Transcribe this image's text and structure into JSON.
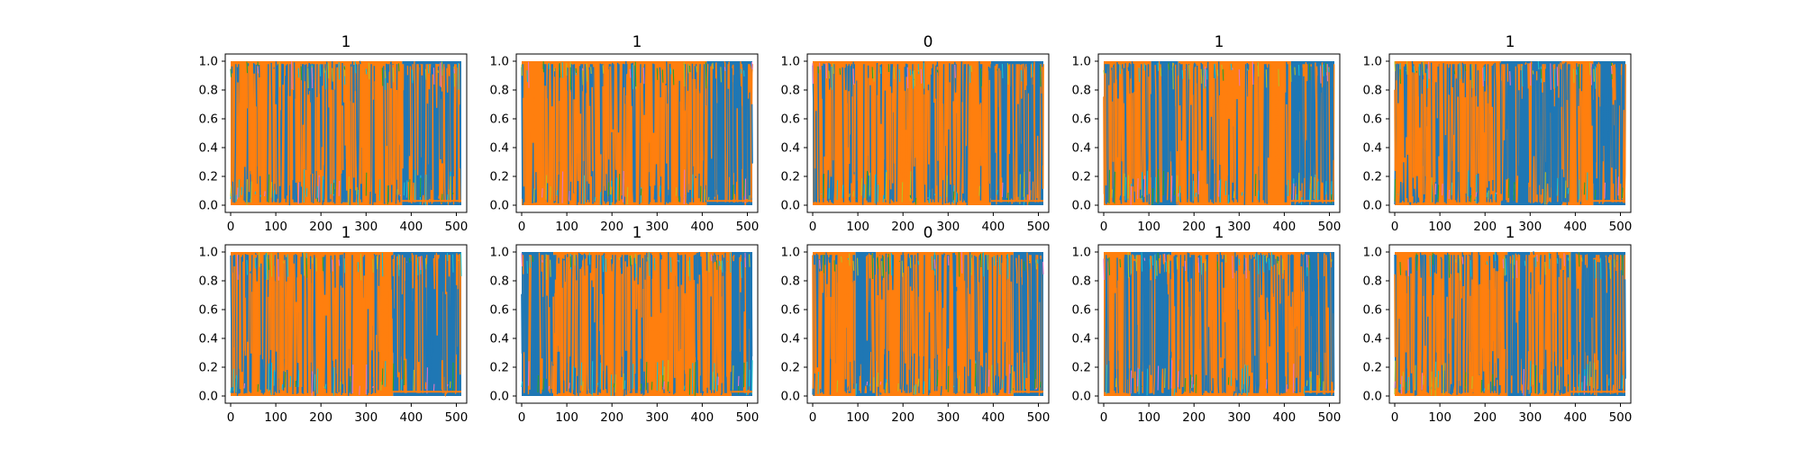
{
  "chart_data": {
    "type": "line",
    "grid": false,
    "legend": "none",
    "layout": "2x5 grid of subplots",
    "palette": [
      "#1f77b4",
      "#ff7f0e",
      "#17becf",
      "#bcbd22",
      "#2ca02c",
      "#e377c2"
    ],
    "panels": [
      {
        "title": "1",
        "xlim": [
          -12,
          523
        ],
        "ylim": [
          -0.05,
          1.05
        ],
        "xticks": [
          0,
          100,
          200,
          300,
          400,
          500
        ],
        "yticks": [
          0.0,
          0.2,
          0.4,
          0.6,
          0.8,
          1.0
        ],
        "segments": [
          {
            "from": 0,
            "to": 380,
            "dominant": "#ff7f0e"
          },
          {
            "from": 380,
            "to": 511,
            "dominant": "#1f77b4"
          }
        ]
      },
      {
        "title": "1",
        "xlim": [
          -12,
          523
        ],
        "ylim": [
          -0.05,
          1.05
        ],
        "xticks": [
          0,
          100,
          200,
          300,
          400,
          500
        ],
        "yticks": [
          0.0,
          0.2,
          0.4,
          0.6,
          0.8,
          1.0
        ],
        "segments": [
          {
            "from": 0,
            "to": 410,
            "dominant": "#ff7f0e"
          },
          {
            "from": 410,
            "to": 511,
            "dominant": "#1f77b4"
          }
        ]
      },
      {
        "title": "0",
        "xlim": [
          -12,
          523
        ],
        "ylim": [
          -0.05,
          1.05
        ],
        "xticks": [
          0,
          100,
          200,
          300,
          400,
          500
        ],
        "yticks": [
          0.0,
          0.2,
          0.4,
          0.6,
          0.8,
          1.0
        ],
        "segments": [
          {
            "from": 0,
            "to": 395,
            "dominant": "#ff7f0e"
          },
          {
            "from": 395,
            "to": 511,
            "dominant": "#1f77b4"
          }
        ]
      },
      {
        "title": "1",
        "xlim": [
          -12,
          523
        ],
        "ylim": [
          -0.05,
          1.05
        ],
        "xticks": [
          0,
          100,
          200,
          300,
          400,
          500
        ],
        "yticks": [
          0.0,
          0.2,
          0.4,
          0.6,
          0.8,
          1.0
        ],
        "segments": [
          {
            "from": 0,
            "to": 105,
            "dominant": "#ff7f0e"
          },
          {
            "from": 105,
            "to": 165,
            "dominant": "#1f77b4"
          },
          {
            "from": 165,
            "to": 415,
            "dominant": "#ff7f0e"
          },
          {
            "from": 415,
            "to": 511,
            "dominant": "#1f77b4"
          }
        ]
      },
      {
        "title": "1",
        "xlim": [
          -12,
          523
        ],
        "ylim": [
          -0.05,
          1.05
        ],
        "xticks": [
          0,
          100,
          200,
          300,
          400,
          500
        ],
        "yticks": [
          0.0,
          0.2,
          0.4,
          0.6,
          0.8,
          1.0
        ],
        "segments": [
          {
            "from": 0,
            "to": 235,
            "dominant": "#ff7f0e"
          },
          {
            "from": 235,
            "to": 370,
            "dominant": "#1f77b4"
          },
          {
            "from": 370,
            "to": 440,
            "dominant": "#ff7f0e"
          },
          {
            "from": 440,
            "to": 511,
            "dominant": "#1f77b4"
          }
        ]
      },
      {
        "title": "1",
        "xlim": [
          -12,
          523
        ],
        "ylim": [
          -0.05,
          1.05
        ],
        "xticks": [
          0,
          100,
          200,
          300,
          400,
          500
        ],
        "yticks": [
          0.0,
          0.2,
          0.4,
          0.6,
          0.8,
          1.0
        ],
        "segments": [
          {
            "from": 0,
            "to": 360,
            "dominant": "#ff7f0e"
          },
          {
            "from": 360,
            "to": 511,
            "dominant": "#1f77b4"
          }
        ]
      },
      {
        "title": "1",
        "xlim": [
          -12,
          523
        ],
        "ylim": [
          -0.05,
          1.05
        ],
        "xticks": [
          0,
          100,
          200,
          300,
          400,
          500
        ],
        "yticks": [
          0.0,
          0.2,
          0.4,
          0.6,
          0.8,
          1.0
        ],
        "segments": [
          {
            "from": 0,
            "to": 70,
            "dominant": "#1f77b4"
          },
          {
            "from": 70,
            "to": 465,
            "dominant": "#ff7f0e"
          },
          {
            "from": 465,
            "to": 511,
            "dominant": "#1f77b4"
          }
        ]
      },
      {
        "title": "0",
        "xlim": [
          -12,
          523
        ],
        "ylim": [
          -0.05,
          1.05
        ],
        "xticks": [
          0,
          100,
          200,
          300,
          400,
          500
        ],
        "yticks": [
          0.0,
          0.2,
          0.4,
          0.6,
          0.8,
          1.0
        ],
        "segments": [
          {
            "from": 0,
            "to": 95,
            "dominant": "#ff7f0e"
          },
          {
            "from": 95,
            "to": 140,
            "dominant": "#1f77b4"
          },
          {
            "from": 140,
            "to": 445,
            "dominant": "#ff7f0e"
          },
          {
            "from": 445,
            "to": 511,
            "dominant": "#1f77b4"
          }
        ]
      },
      {
        "title": "1",
        "xlim": [
          -12,
          523
        ],
        "ylim": [
          -0.05,
          1.05
        ],
        "xticks": [
          0,
          100,
          200,
          300,
          400,
          500
        ],
        "yticks": [
          0.0,
          0.2,
          0.4,
          0.6,
          0.8,
          1.0
        ],
        "segments": [
          {
            "from": 0,
            "to": 60,
            "dominant": "#ff7f0e"
          },
          {
            "from": 60,
            "to": 150,
            "dominant": "#1f77b4"
          },
          {
            "from": 150,
            "to": 445,
            "dominant": "#ff7f0e"
          },
          {
            "from": 445,
            "to": 511,
            "dominant": "#1f77b4"
          }
        ]
      },
      {
        "title": "1",
        "xlim": [
          -12,
          523
        ],
        "ylim": [
          -0.05,
          1.05
        ],
        "xticks": [
          0,
          100,
          200,
          300,
          400,
          500
        ],
        "yticks": [
          0.0,
          0.2,
          0.4,
          0.6,
          0.8,
          1.0
        ],
        "segments": [
          {
            "from": 0,
            "to": 250,
            "dominant": "#ff7f0e"
          },
          {
            "from": 250,
            "to": 300,
            "dominant": "#1f77b4"
          },
          {
            "from": 300,
            "to": 390,
            "dominant": "#ff7f0e"
          },
          {
            "from": 390,
            "to": 511,
            "dominant": "#1f77b4"
          }
        ]
      }
    ]
  }
}
